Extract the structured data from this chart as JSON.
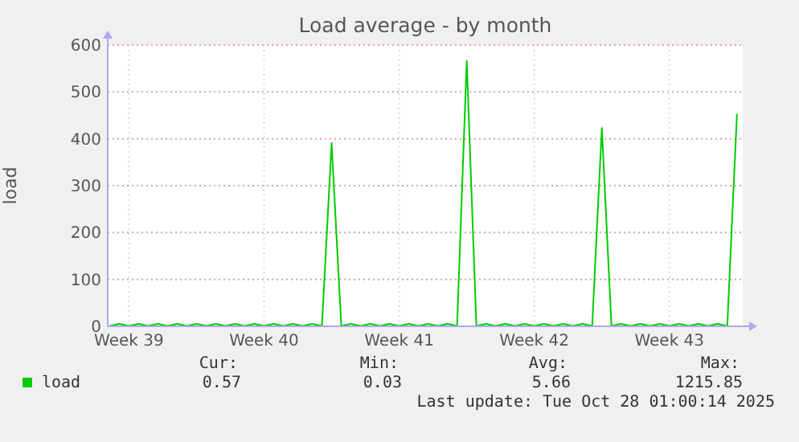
{
  "chart_data": {
    "type": "line",
    "title": "Load average - by month",
    "ylabel": "load",
    "categories": [
      null,
      null,
      "Week 39",
      null,
      null,
      null,
      null,
      null,
      null,
      null,
      null,
      null,
      null,
      null,
      null,
      null,
      "Week 40",
      null,
      null,
      null,
      null,
      null,
      null,
      null,
      null,
      null,
      null,
      null,
      null,
      null,
      "Week 41",
      null,
      null,
      null,
      null,
      null,
      null,
      null,
      null,
      null,
      null,
      null,
      null,
      null,
      "Week 42",
      null,
      null,
      null,
      null,
      null,
      null,
      null,
      null,
      null,
      null,
      null,
      null,
      null,
      "Week 43",
      null,
      null,
      null,
      null,
      null,
      null,
      null
    ],
    "series": [
      {
        "name": "load",
        "color": "#00cc00",
        "values": [
          1,
          5,
          1,
          5,
          1,
          5,
          1,
          5,
          1,
          5,
          1,
          5,
          1,
          5,
          1,
          5,
          1,
          5,
          1,
          5,
          1,
          5,
          1,
          391,
          1,
          5,
          1,
          5,
          1,
          5,
          1,
          5,
          1,
          5,
          1,
          5,
          1,
          566,
          1,
          5,
          1,
          5,
          1,
          5,
          1,
          5,
          1,
          5,
          1,
          5,
          1,
          423,
          1,
          5,
          1,
          5,
          1,
          5,
          1,
          5,
          1,
          5,
          1,
          5,
          1,
          453
        ]
      }
    ],
    "ylim": [
      0,
      600
    ],
    "yticks": [
      0,
      100,
      200,
      300,
      400,
      500,
      600
    ],
    "grid": true,
    "legend": "bottom",
    "annotations": [
      "Cur:",
      "Min:",
      "Avg:",
      "Max:",
      "0.57",
      "0.03",
      "5.66",
      "1215.85",
      "Last update: Tue Oct 28 01:00:14 2025"
    ]
  }
}
